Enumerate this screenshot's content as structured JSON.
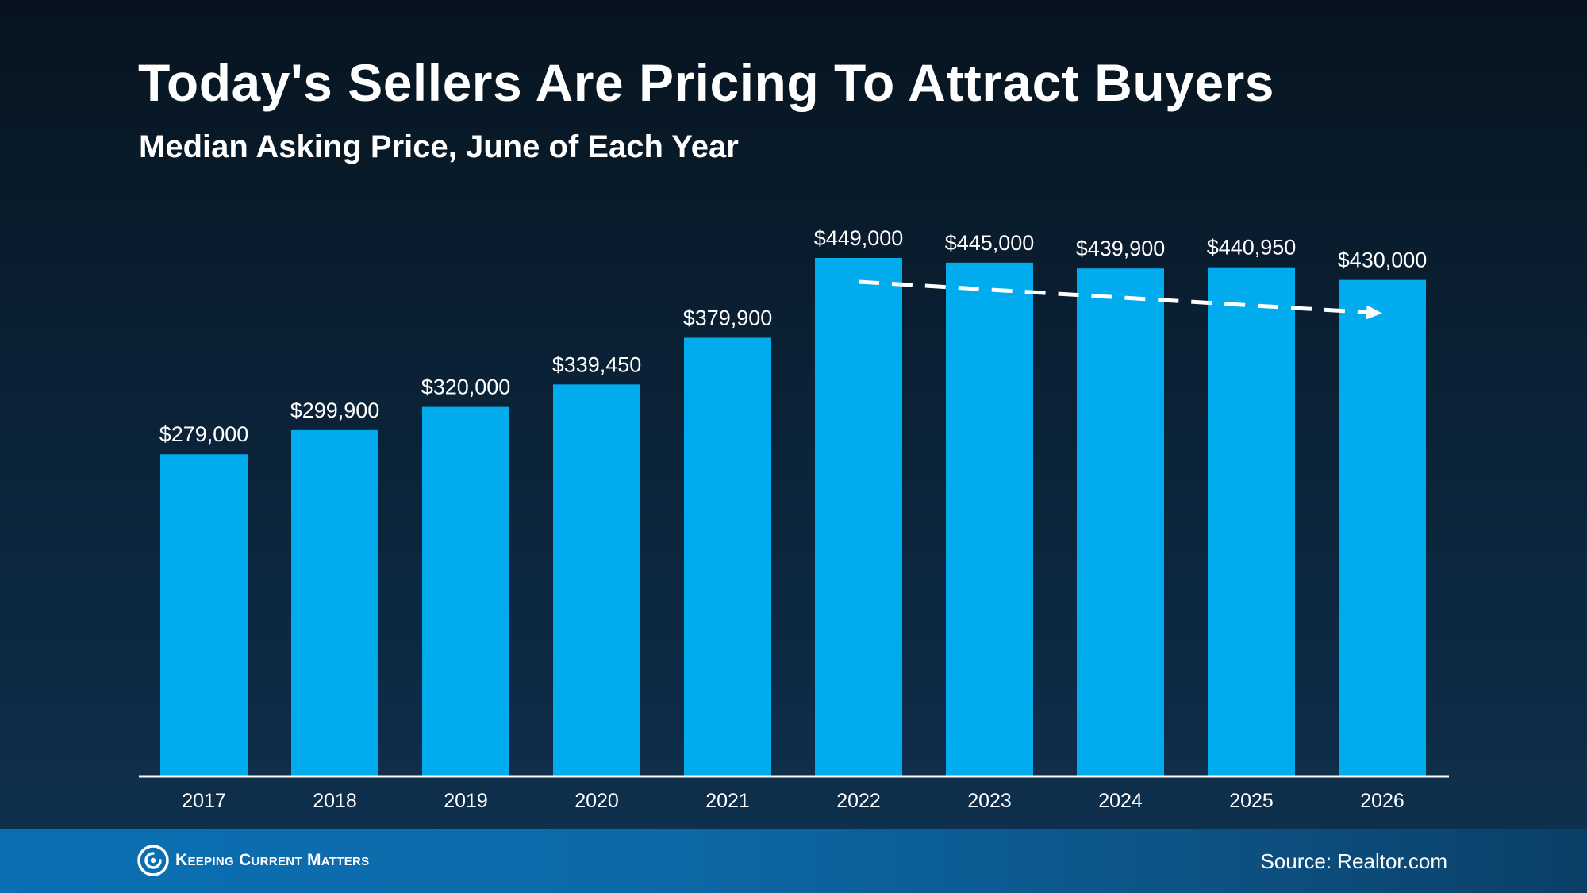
{
  "slide": {
    "title": "Today's Sellers Are Pricing To Attract Buyers",
    "subtitle": "Median Asking Price, June of Each Year"
  },
  "footer": {
    "brand_name": "Keeping Current Matters",
    "brand_icon": "kcm-logo-icon",
    "source": "Source: Realtor.com"
  },
  "colors": {
    "background": "#0b2237",
    "bar": "#00acee",
    "text": "#ffffff",
    "trend_arrow": "#ffffff",
    "footer": "#0a6fb3"
  },
  "chart_data": {
    "type": "bar",
    "title": "Today's Sellers Are Pricing To Attract Buyers",
    "subtitle": "Median Asking Price, June of Each Year",
    "xlabel": "",
    "ylabel": "",
    "categories": [
      "2017",
      "2018",
      "2019",
      "2020",
      "2021",
      "2022",
      "2023",
      "2024",
      "2025",
      "2026"
    ],
    "values": [
      279000,
      299900,
      320000,
      339450,
      379900,
      449000,
      445000,
      439900,
      440950,
      430000
    ],
    "data_labels": [
      "$279,000",
      "$299,900",
      "$320,000",
      "$339,450",
      "$379,900",
      "$449,000",
      "$445,000",
      "$439,900",
      "$440,950",
      "$430,000"
    ],
    "ylim": [
      0,
      449000
    ],
    "grid": false,
    "legend": "none",
    "annotations": [
      {
        "type": "dashed-arrow",
        "from_category": "2022",
        "to_category": "2026",
        "meaning": "downward trend"
      }
    ]
  }
}
